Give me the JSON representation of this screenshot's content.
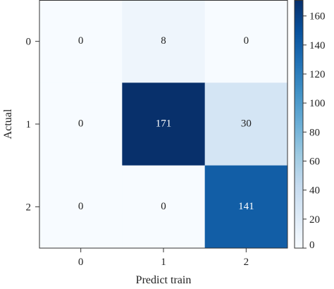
{
  "chart_data": {
    "type": "heatmap",
    "title": "",
    "xlabel": "Predict train",
    "ylabel": "Actual",
    "x_categories": [
      "0",
      "1",
      "2"
    ],
    "y_categories": [
      "0",
      "1",
      "2"
    ],
    "values": [
      [
        0,
        8,
        0
      ],
      [
        0,
        171,
        30
      ],
      [
        0,
        0,
        141
      ]
    ],
    "colorbar": {
      "range": [
        0,
        171
      ],
      "ticks": [
        0,
        20,
        40,
        60,
        80,
        100,
        120,
        140,
        160
      ],
      "colormap": "Blues",
      "colors": [
        "#f7fbff",
        "#deebf7",
        "#c6dbef",
        "#9ecae1",
        "#6baed6",
        "#4292c6",
        "#2171b5",
        "#08519c",
        "#08306b"
      ]
    },
    "grid": false
  }
}
